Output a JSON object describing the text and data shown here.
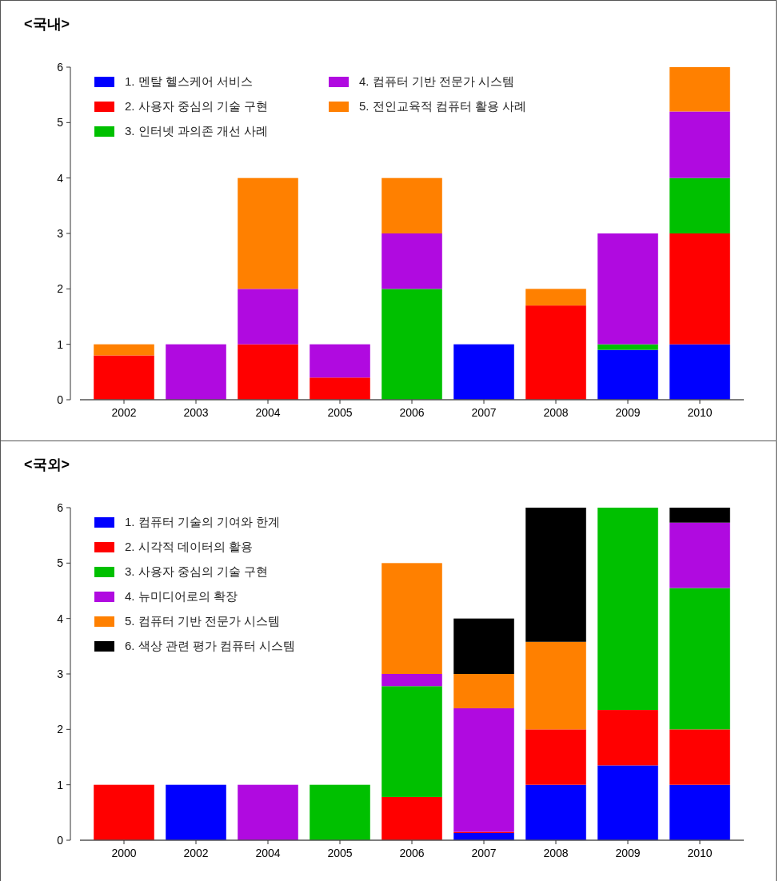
{
  "chart_data": [
    {
      "type": "bar",
      "title": "<국내>",
      "stacked": true,
      "legend": "top left",
      "ylim": [
        0,
        6
      ],
      "yticks": [
        0,
        1,
        2,
        3,
        4,
        5,
        6
      ],
      "categories": [
        "2002",
        "2003",
        "2004",
        "2005",
        "2006",
        "2007",
        "2008",
        "2009",
        "2010"
      ],
      "series": [
        {
          "name": "1. 멘탈 헬스케어 서비스",
          "color": "#0000ff",
          "values": [
            0,
            0,
            0,
            0,
            0,
            1,
            0,
            0.9,
            1
          ]
        },
        {
          "name": "2. 사용자 중심의 기술 구현",
          "color": "#ff0000",
          "values": [
            0.8,
            0,
            1,
            0.4,
            0,
            0,
            1.7,
            0,
            2
          ]
        },
        {
          "name": "3. 인터넷 과의존 개선 사례",
          "color": "#00c000",
          "values": [
            0,
            0,
            0,
            0,
            2,
            0,
            0,
            0.1,
            1
          ]
        },
        {
          "name": "4. 컴퓨터 기반 전문가 시스템",
          "color": "#b00ae0",
          "values": [
            0,
            1,
            1,
            0.6,
            1,
            0,
            0,
            2,
            1.2
          ]
        },
        {
          "name": "5. 전인교육적 컴퓨터 활용 사례",
          "color": "#ff8000",
          "values": [
            0.2,
            0,
            2,
            0,
            1,
            0,
            0.3,
            0,
            0.8
          ]
        }
      ]
    },
    {
      "type": "bar",
      "title": "<국외>",
      "stacked": true,
      "legend": "top left",
      "ylim": [
        0,
        6
      ],
      "yticks": [
        0,
        1,
        2,
        3,
        4,
        5,
        6
      ],
      "categories": [
        "2000",
        "2002",
        "2004",
        "2005",
        "2006",
        "2007",
        "2008",
        "2009",
        "2010"
      ],
      "series": [
        {
          "name": "1. 컴퓨터 기술의 기여와 한계",
          "color": "#0000ff",
          "values": [
            0,
            1,
            0,
            0,
            0,
            0.13,
            1,
            1.35,
            1
          ]
        },
        {
          "name": "2. 시각적 데이터의 활용",
          "color": "#ff0000",
          "values": [
            1,
            0,
            0,
            0,
            0.78,
            0.02,
            1,
            1,
            1
          ]
        },
        {
          "name": "3. 사용자 중심의 기술 구현",
          "color": "#00c000",
          "values": [
            0,
            0,
            0,
            1,
            2,
            0,
            0,
            3.65,
            2.55
          ]
        },
        {
          "name": "4. 뉴미디어로의 확장",
          "color": "#b00ae0",
          "values": [
            0,
            0,
            1,
            0,
            0.22,
            2.23,
            0,
            0,
            1.18
          ]
        },
        {
          "name": "5. 컴퓨터 기반 전문가 시스템",
          "color": "#ff8000",
          "values": [
            0,
            0,
            0,
            0,
            2,
            0.62,
            1.58,
            0,
            0
          ]
        },
        {
          "name": "6. 색상 관련 평가 컴퓨터 시스템",
          "color": "#000000",
          "values": [
            0,
            0,
            0,
            0,
            0,
            1,
            2.42,
            0,
            0.27
          ]
        }
      ]
    }
  ]
}
